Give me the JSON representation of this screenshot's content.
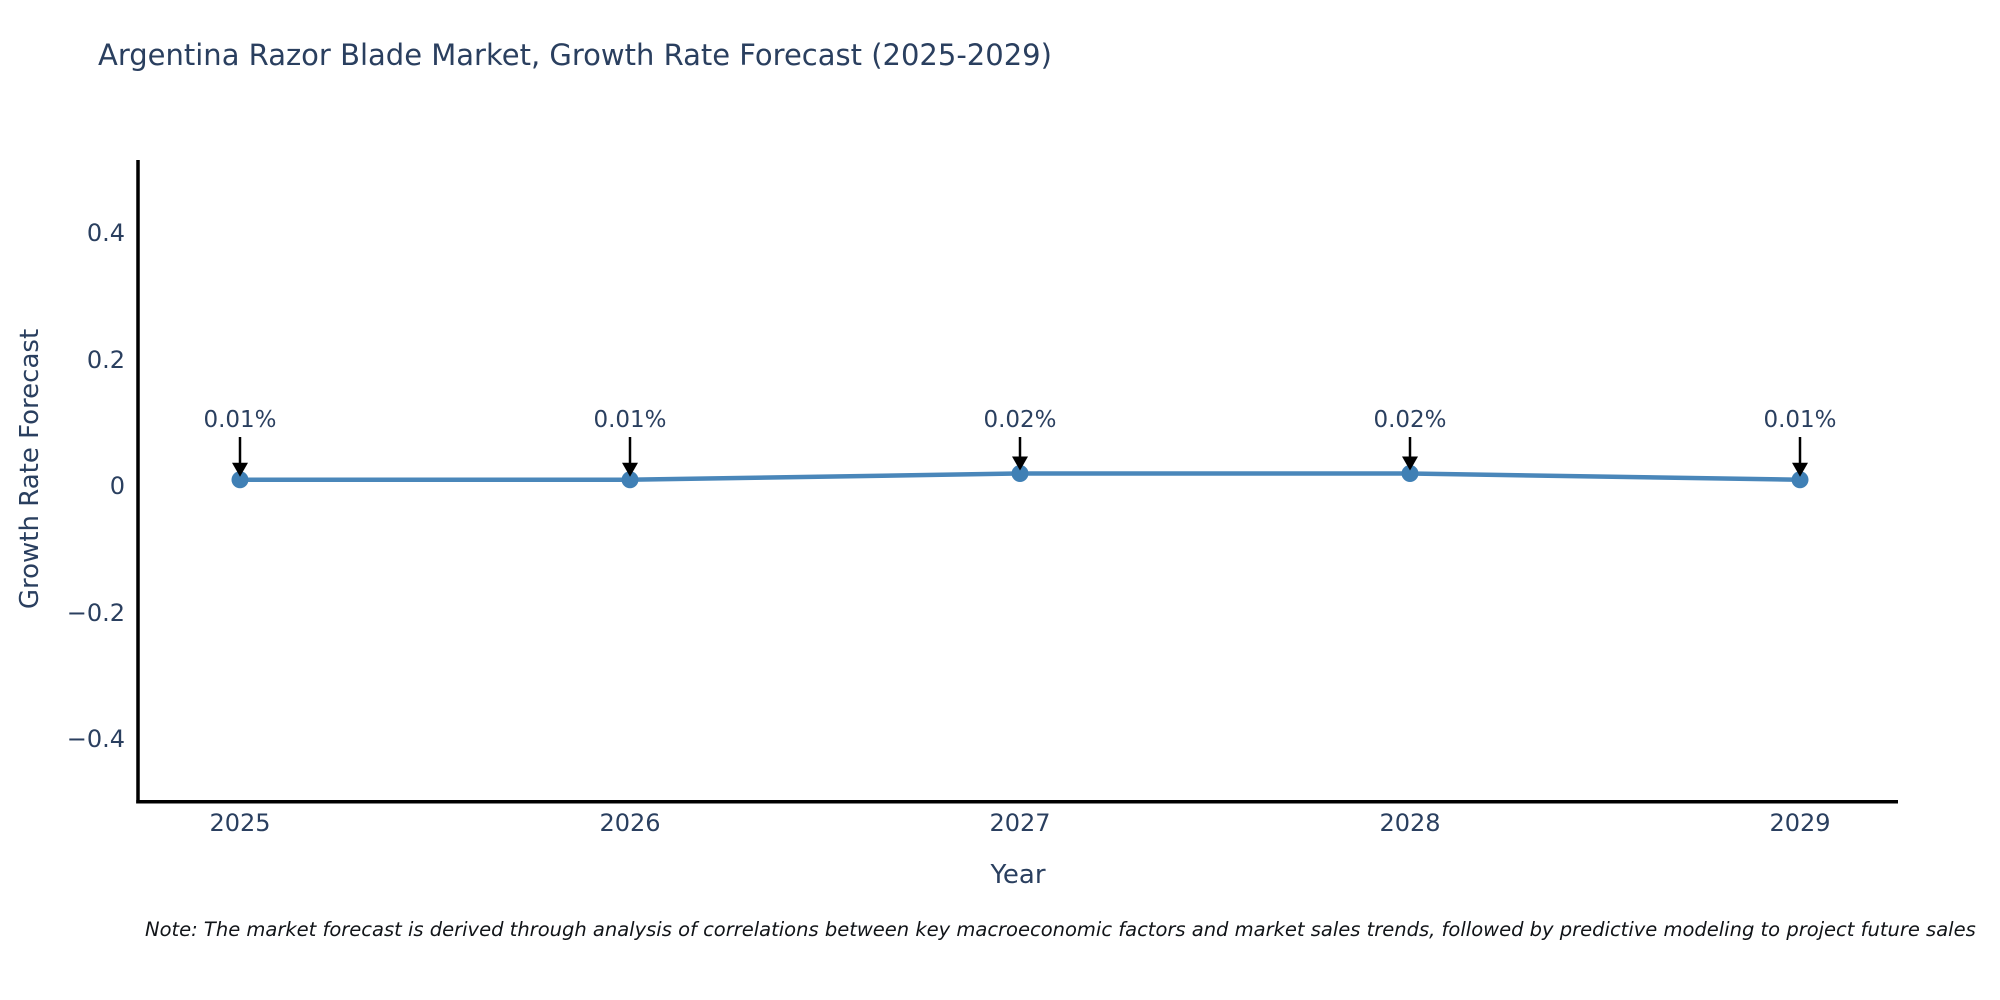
{
  "page": {
    "background": "#ffffff"
  },
  "chart_data": {
    "type": "line",
    "title": "Argentina Razor Blade Market, Growth Rate Forecast (2025-2029)",
    "xlabel": "Year",
    "ylabel": "Growth Rate Forecast",
    "categories": [
      "2025",
      "2026",
      "2027",
      "2028",
      "2029"
    ],
    "x": [
      2025,
      2026,
      2027,
      2028,
      2029
    ],
    "values": [
      0.01,
      0.01,
      0.02,
      0.02,
      0.01
    ],
    "point_labels": [
      "0.01%",
      "0.01%",
      "0.02%",
      "0.02%",
      "0.01%"
    ],
    "yticks": [
      "0.4",
      "0.2",
      "0",
      "−0.2",
      "−0.4"
    ],
    "ylim": [
      -0.5,
      0.5
    ],
    "grid": false,
    "legend": false,
    "line_color": "#4a87ba",
    "marker_color": "#4080b5",
    "axis_color": "#000000",
    "annotation_arrow_color": "#000000",
    "text_color": "#2a3f5f"
  },
  "footnote": {
    "text": "Note: The market forecast is derived through analysis of correlations between key macroeconomic factors and market sales trends, followed by predictive modeling to project future sales"
  }
}
